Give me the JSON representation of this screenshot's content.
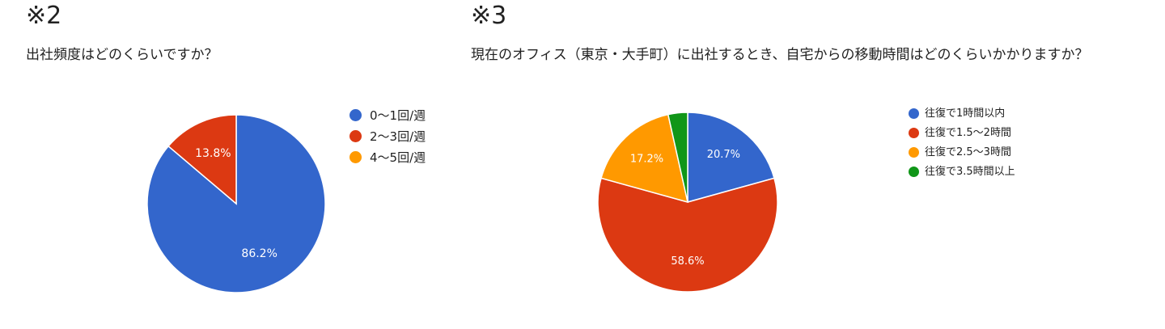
{
  "chart_data": [
    {
      "type": "pie",
      "panel_label": "※2",
      "title": "出社頻度はどのくらいですか？",
      "categories": [
        "0〜1回/週",
        "2〜3回/週",
        "4〜5回/週"
      ],
      "values": [
        86.2,
        13.8,
        0
      ],
      "value_labels": [
        "86.2%",
        "13.8%",
        ""
      ],
      "colors": [
        "#3366cc",
        "#dc3912",
        "#ff9900"
      ],
      "legend": "right"
    },
    {
      "type": "pie",
      "panel_label": "※3",
      "title": "現在のオフィス（東京・大手町）に出社するとき、自宅からの移動時間はどのくらいかかりますか？",
      "categories": [
        "往復で1時間以内",
        "往復で1.5〜2時間",
        "往復で2.5〜3時間",
        "往復で3.5時間以上"
      ],
      "values": [
        20.7,
        58.6,
        17.2,
        3.5
      ],
      "value_labels": [
        "20.7%",
        "58.6%",
        "17.2%",
        ""
      ],
      "colors": [
        "#3366cc",
        "#dc3912",
        "#ff9900",
        "#109618"
      ],
      "legend": "right"
    }
  ]
}
